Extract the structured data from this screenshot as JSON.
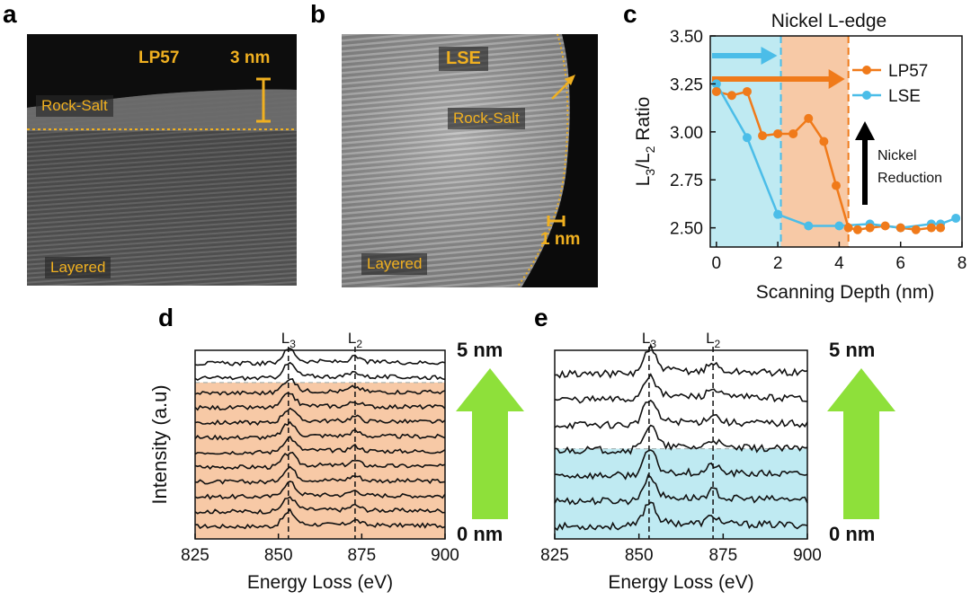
{
  "panels": {
    "a": {
      "letter": "a",
      "title": "LP57",
      "scale": "3 nm",
      "top_label": "Rock-Salt",
      "bottom_label": "Layered"
    },
    "b": {
      "letter": "b",
      "title": "LSE",
      "scale": "1 nm",
      "top_label": "Rock-Salt",
      "bottom_label": "Layered"
    },
    "c": {
      "letter": "c"
    },
    "d": {
      "letter": "d",
      "top_depth": "5 nm",
      "bottom_depth": "0 nm"
    },
    "e": {
      "letter": "e",
      "top_depth": "5 nm",
      "bottom_depth": "0 nm"
    }
  },
  "colors": {
    "lp57": "#f07a1a",
    "lse": "#4bbde8",
    "lp57_shade": "#f7c9a6",
    "lse_shade": "#bfeaf2",
    "arrow_green": "#8ee03a",
    "micro_label": "#f0b020"
  },
  "chart_data": [
    {
      "id": "c",
      "type": "line",
      "title": "Nickel L-edge",
      "xlabel": "Scanning Depth (nm)",
      "ylabel": "L3/L2 Ratio",
      "xlim": [
        -0.2,
        8
      ],
      "ylim": [
        2.4,
        3.5
      ],
      "xticks": [
        0,
        2,
        4,
        6,
        8
      ],
      "yticks": [
        2.5,
        2.75,
        3.0,
        3.25,
        3.5
      ],
      "ytick_labels": [
        "2.50",
        "2.75",
        "3.00",
        "3.25",
        "3.50"
      ],
      "legend": "top-right",
      "series": [
        {
          "name": "LP57",
          "color": "#f07a1a",
          "x": [
            0,
            0.5,
            1.0,
            1.5,
            2.0,
            2.5,
            3.0,
            3.5,
            3.9,
            4.3,
            4.6,
            5.0,
            5.5,
            6.0,
            6.5,
            7.0,
            7.3
          ],
          "y": [
            3.21,
            3.19,
            3.21,
            2.98,
            2.99,
            2.99,
            3.07,
            2.95,
            2.72,
            2.5,
            2.49,
            2.5,
            2.51,
            2.5,
            2.49,
            2.5,
            2.5
          ]
        },
        {
          "name": "LSE",
          "color": "#4bbde8",
          "x": [
            0,
            1.0,
            2.0,
            3.0,
            4.0,
            5.0,
            6.0,
            7.0,
            7.3,
            7.8
          ],
          "y": [
            3.25,
            2.97,
            2.57,
            2.51,
            2.51,
            2.52,
            2.5,
            2.52,
            2.52,
            2.55
          ]
        }
      ],
      "shaded_regions": [
        {
          "x0": -0.2,
          "x1": 2.1,
          "color": "#bfeaf2"
        },
        {
          "x0": 2.1,
          "x1": 4.3,
          "color": "#f7c9a6"
        }
      ],
      "vlines": [
        {
          "x": 2.1,
          "color": "#4bbde8"
        },
        {
          "x": 4.3,
          "color": "#f07a1a"
        }
      ],
      "annotation": "Nickel Reduction"
    },
    {
      "id": "d",
      "type": "line",
      "xlabel": "Energy Loss (eV)",
      "ylabel": "Intensity (a.u)",
      "xlim": [
        825,
        900
      ],
      "xticks": [
        825,
        850,
        875,
        900
      ],
      "peak_labels": [
        {
          "label": "L3",
          "x": 853
        },
        {
          "label": "L2",
          "x": 873
        }
      ],
      "n_spectra": 12,
      "shaded_spectra": 10,
      "shade_color": "#f7c9a6"
    },
    {
      "id": "e",
      "type": "line",
      "xlabel": "Energy Loss (eV)",
      "xlim": [
        825,
        900
      ],
      "xticks": [
        825,
        850,
        875,
        900
      ],
      "peak_labels": [
        {
          "label": "L3",
          "x": 853
        },
        {
          "label": "L2",
          "x": 872
        }
      ],
      "n_spectra": 7,
      "shaded_spectra": 3,
      "shade_color": "#bfeaf2"
    }
  ]
}
